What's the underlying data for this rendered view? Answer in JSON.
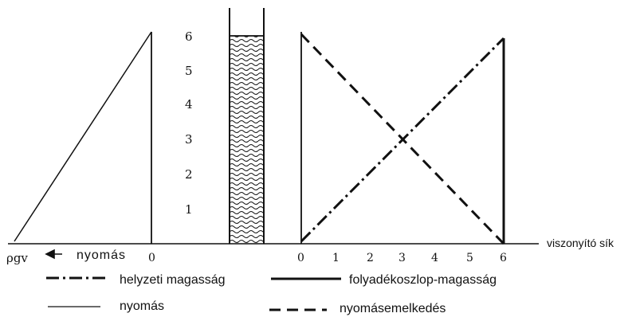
{
  "pressure_panel": {
    "rho_g_h_label": "ρgv",
    "pressure_label": "nyomás",
    "zero_label": "0"
  },
  "scale": {
    "ticks": [
      "1",
      "2",
      "3",
      "4",
      "5",
      "6"
    ]
  },
  "liquid_column": {
    "top_value": 6
  },
  "head_panel": {
    "x_ticks": [
      "0",
      "1",
      "2",
      "3",
      "4",
      "5",
      "6"
    ],
    "reference_plane_label": "viszonyító sík",
    "max_value": 6
  },
  "legend": {
    "position_head": "helyzeti magasság",
    "liquid_column_height": "folyadékoszlop-magasság",
    "pressure": "nyomás",
    "pressure_rise": "nyomásemelkedés"
  },
  "colors": {
    "ink": "#111111",
    "liquid_fill": "#ffffff"
  }
}
